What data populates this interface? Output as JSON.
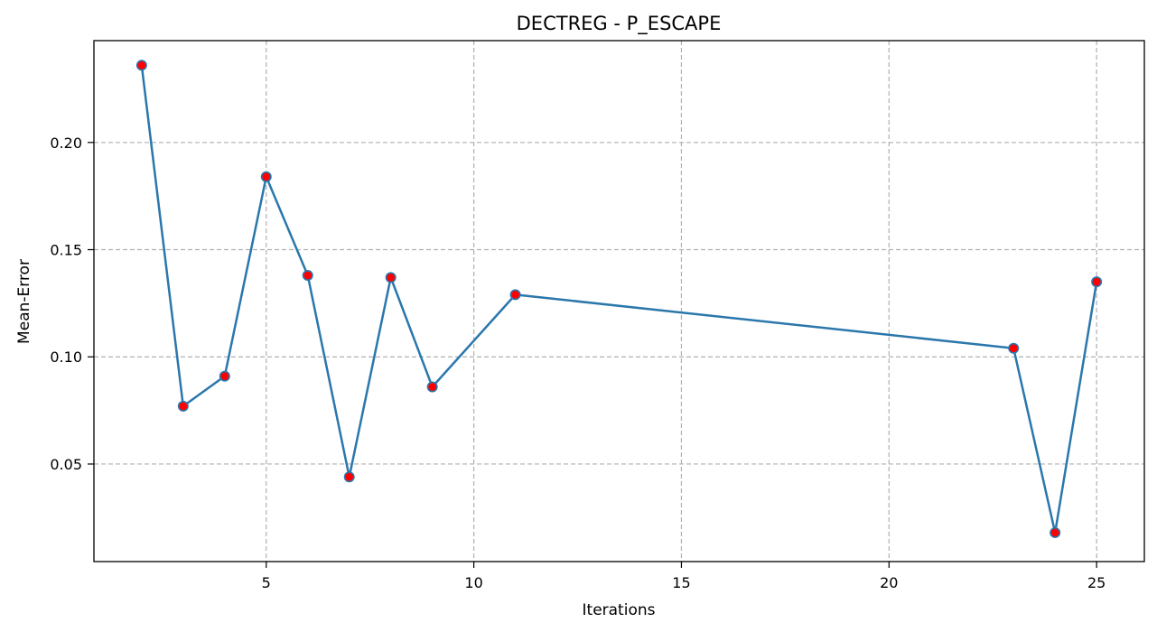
{
  "chart_data": {
    "type": "line",
    "title": "DECTREG - P_ESCAPE",
    "xlabel": "Iterations",
    "ylabel": "Mean-Error",
    "xlim": [
      0.85,
      26.15
    ],
    "ylim": [
      0.0045,
      0.2475
    ],
    "xticks": [
      5,
      10,
      15,
      20,
      25
    ],
    "yticks": [
      0.05,
      0.1,
      0.15,
      0.2
    ],
    "ytick_labels": [
      "0.05",
      "0.10",
      "0.15",
      "0.20"
    ],
    "grid": true,
    "line_color": "#2a77ac",
    "marker_face_color": "#ff0000",
    "marker_edge_color": "#2a77ac",
    "series": [
      {
        "x": [
          2,
          3,
          4,
          5,
          6,
          7,
          8,
          9,
          11,
          23,
          24,
          25
        ],
        "y": [
          0.236,
          0.077,
          0.091,
          0.184,
          0.138,
          0.044,
          0.137,
          0.086,
          0.129,
          0.104,
          0.018,
          0.135
        ]
      }
    ]
  }
}
